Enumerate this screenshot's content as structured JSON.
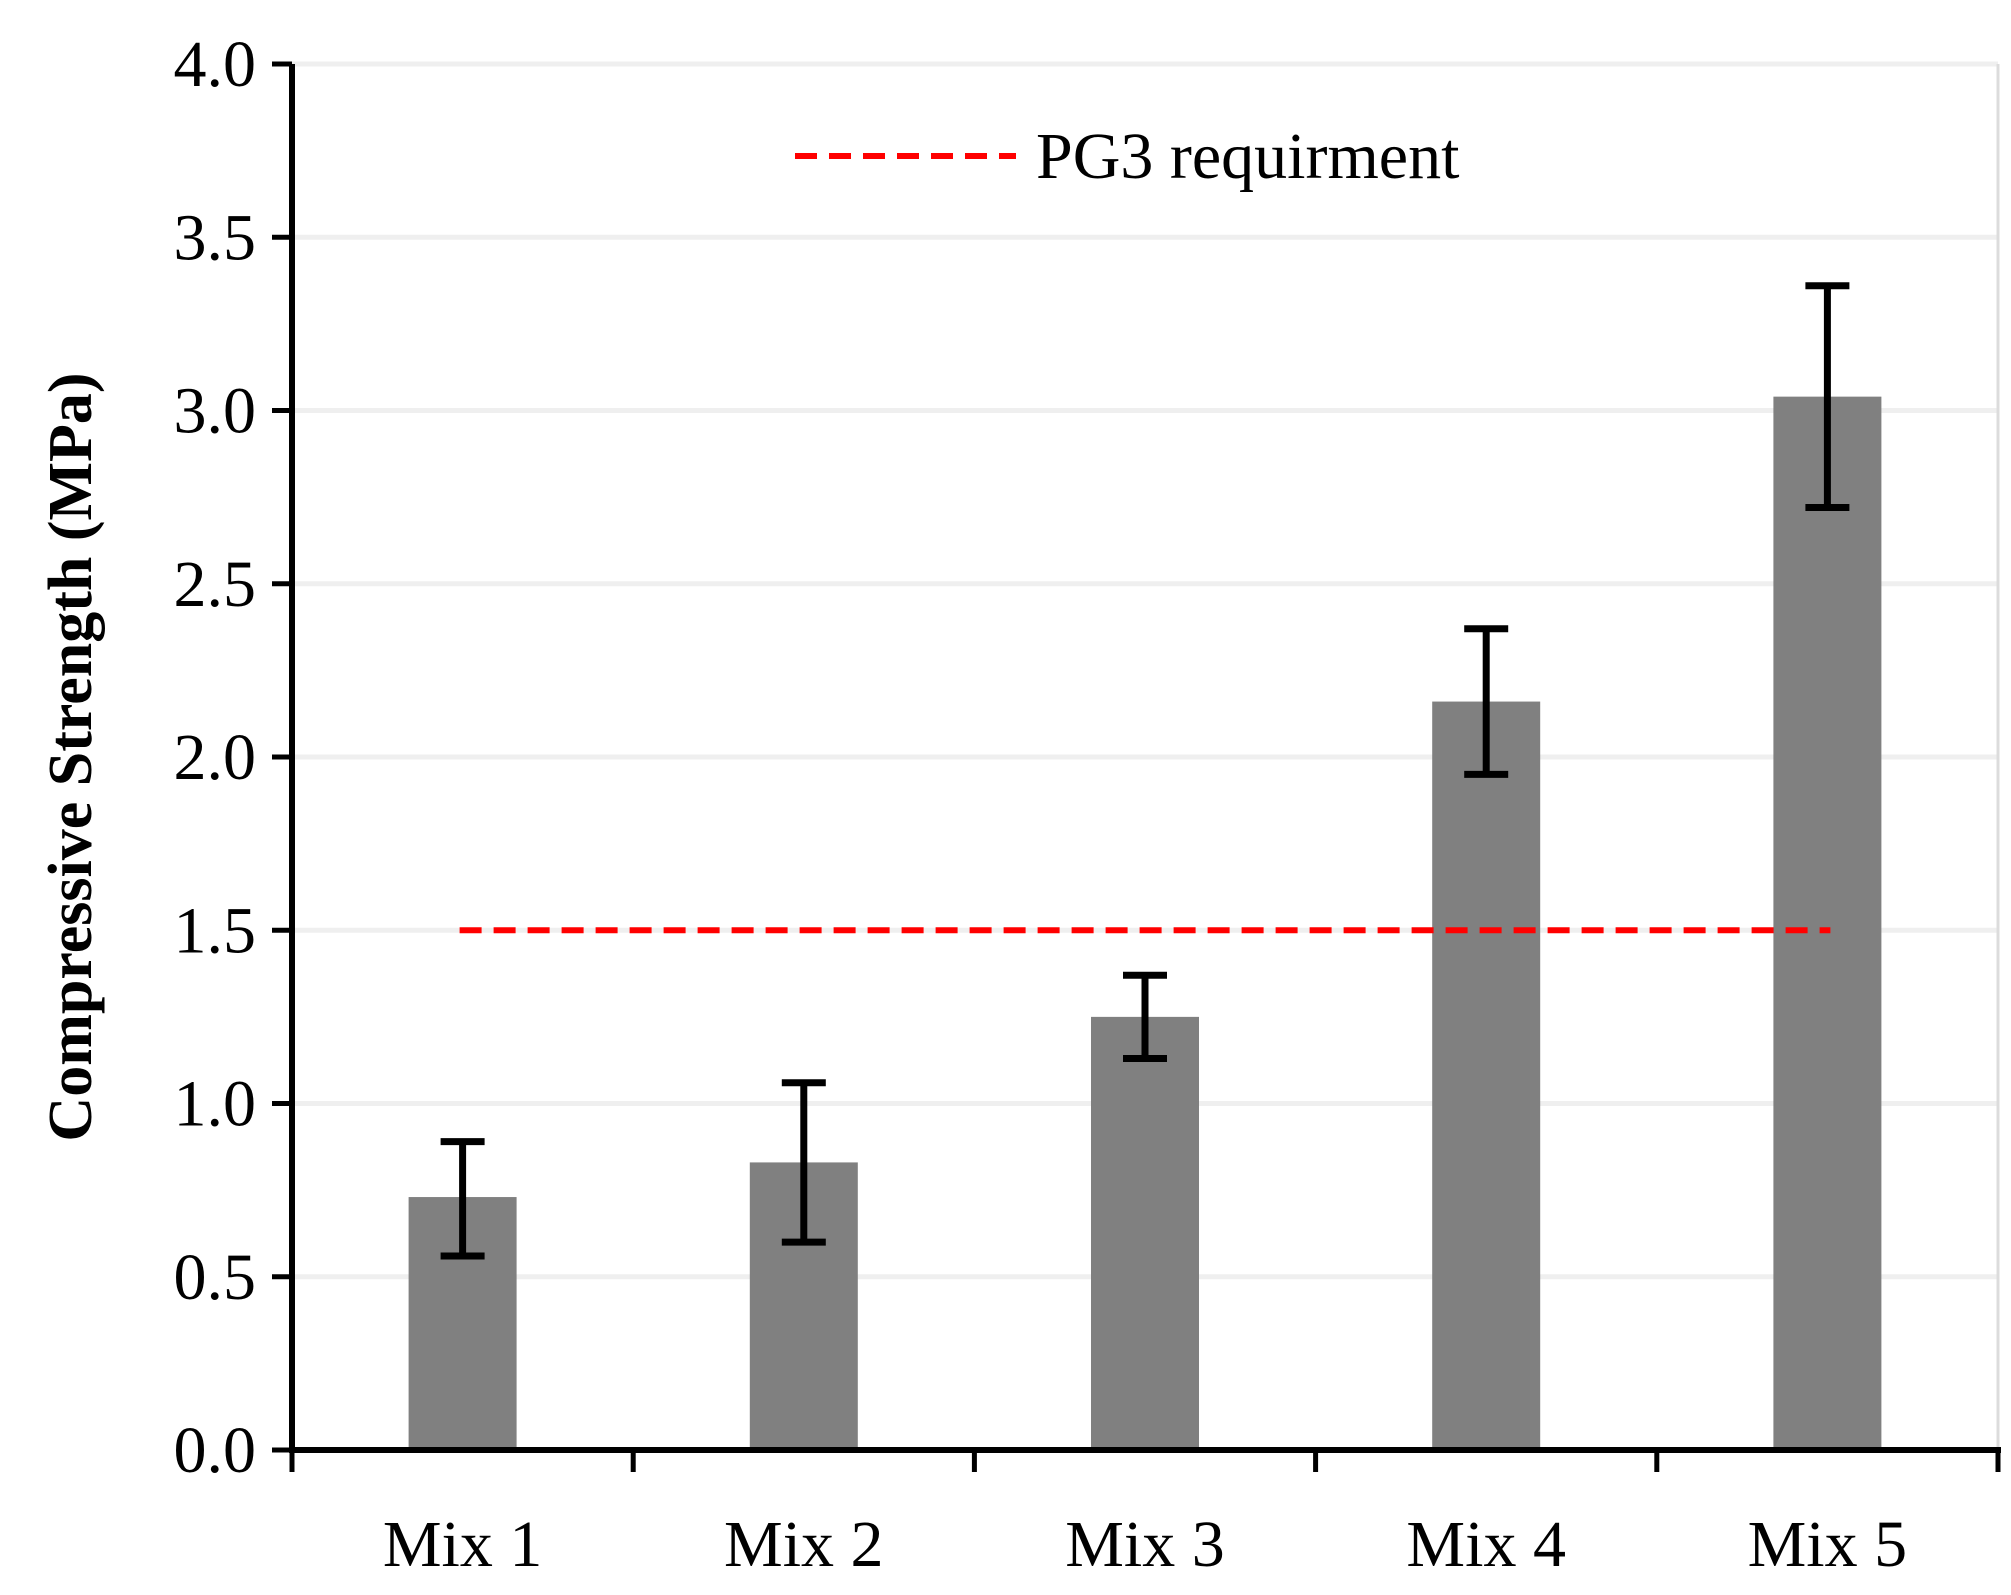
{
  "chart_data": {
    "type": "bar",
    "title": "",
    "xlabel": "",
    "ylabel": "Compressive Strength (MPa)",
    "ylim": [
      0,
      4.0
    ],
    "yticks": [
      0.0,
      0.5,
      1.0,
      1.5,
      2.0,
      2.5,
      3.0,
      3.5,
      4.0
    ],
    "ytick_labels": [
      "0.0",
      "0.5",
      "1.0",
      "1.5",
      "2.0",
      "2.5",
      "3.0",
      "3.5",
      "4.0"
    ],
    "categories": [
      "Mix 1",
      "Mix 2",
      "Mix 3",
      "Mix 4",
      "Mix 5"
    ],
    "values": [
      0.73,
      0.83,
      1.25,
      2.16,
      3.04
    ],
    "error_low": [
      0.56,
      0.6,
      1.13,
      1.95,
      2.72
    ],
    "error_high": [
      0.89,
      1.06,
      1.37,
      2.37,
      3.36
    ],
    "grid": true,
    "reference_line": {
      "value": 1.5,
      "label": "PG3 requirment",
      "color": "#ff0000",
      "style": "dashed"
    },
    "legend": {
      "position": "top-center",
      "entries": [
        "PG3 requirment"
      ]
    },
    "colors": {
      "bar": "#808080",
      "axis": "#000000",
      "grid": "#efefef",
      "error": "#000000"
    }
  }
}
